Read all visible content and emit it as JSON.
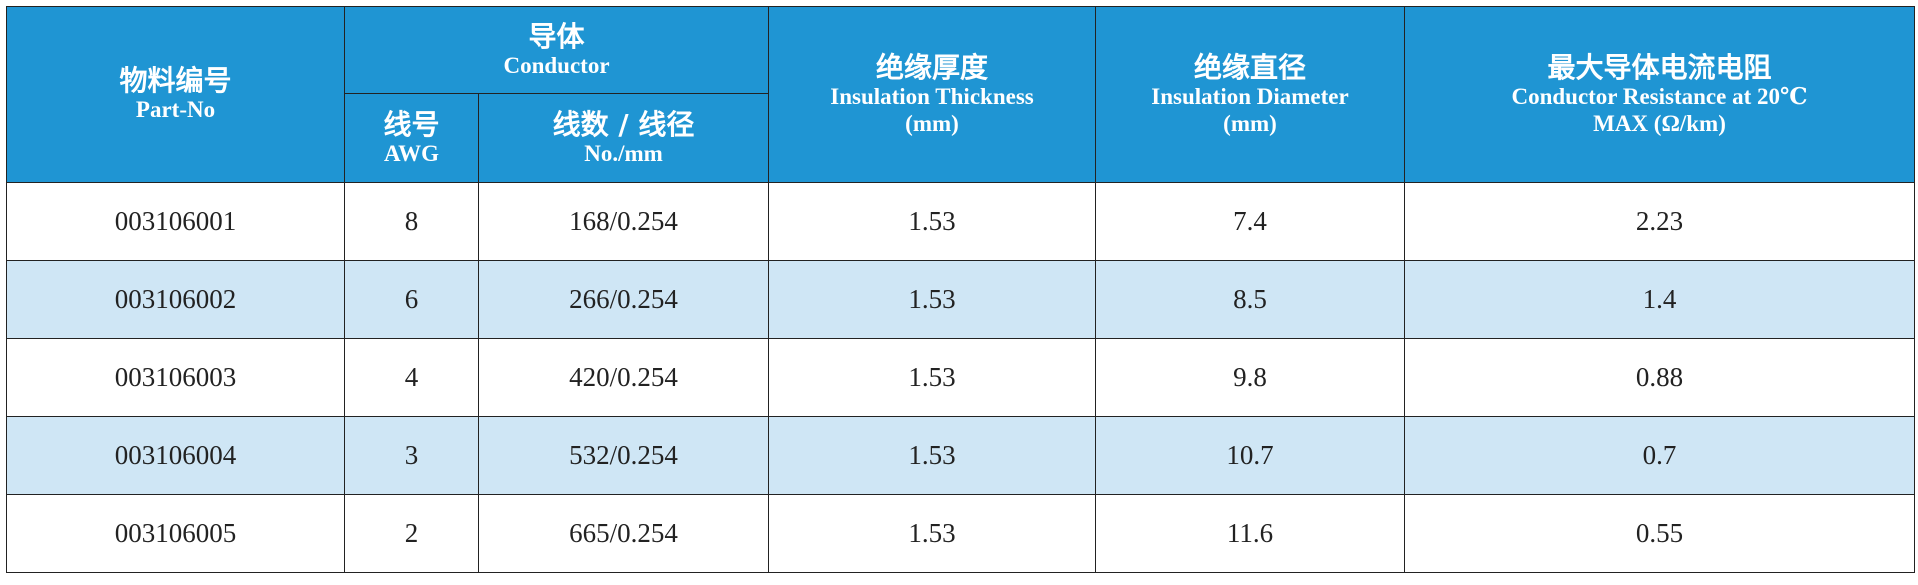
{
  "table": {
    "header": {
      "part_no": {
        "cn": "物料编号",
        "en": "Part-No"
      },
      "conductor": {
        "cn": "导体",
        "en": "Conductor"
      },
      "awg": {
        "cn": "线号",
        "en": "AWG"
      },
      "strands": {
        "cn": "线数 / 线径",
        "en": "No./mm"
      },
      "thickness": {
        "cn": "绝缘厚度",
        "en": "Insulation Thickness",
        "unit": "(mm)"
      },
      "diameter": {
        "cn": "绝缘直径",
        "en": "Insulation Diameter",
        "unit": "(mm)"
      },
      "resistance": {
        "cn": "最大导体电流电阻",
        "en": "Conductor Resistance at 20℃",
        "unit": "MAX (Ω/km)"
      }
    },
    "rows": [
      [
        "003106001",
        "8",
        "168/0.254",
        "1.53",
        "7.4",
        "2.23"
      ],
      [
        "003106002",
        "6",
        "266/0.254",
        "1.53",
        "8.5",
        "1.4"
      ],
      [
        "003106003",
        "4",
        "420/0.254",
        "1.53",
        "9.8",
        "0.88"
      ],
      [
        "003106004",
        "3",
        "532/0.254",
        "1.53",
        "10.7",
        "0.7"
      ],
      [
        "003106005",
        "2",
        "665/0.254",
        "1.53",
        "11.6",
        "0.55"
      ]
    ]
  }
}
